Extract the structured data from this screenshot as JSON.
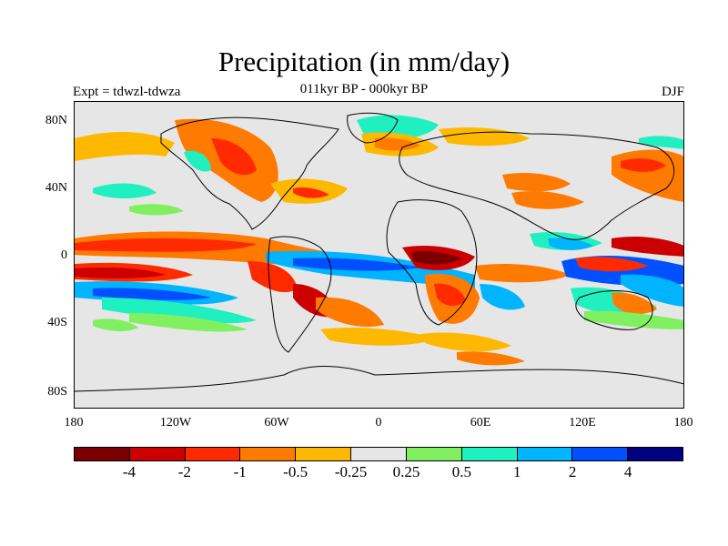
{
  "header": {
    "title": "Precipitation (in mm/day)",
    "subtitle": "011kyr BP - 000kyr BP",
    "left_label": "Expt = tdwzl-tdwza",
    "right_label": "DJF"
  },
  "axes": {
    "lat_ticks": [
      "80N",
      "40N",
      "0",
      "40S",
      "80S"
    ],
    "lon_ticks": [
      "180",
      "120W",
      "60W",
      "0",
      "60E",
      "120E",
      "180"
    ]
  },
  "legend": {
    "colors": [
      "#7a0000",
      "#cc0000",
      "#ff2a00",
      "#ff7a00",
      "#ffb800",
      "#e6e6e6",
      "#80f060",
      "#20f0c0",
      "#00b4ff",
      "#0050ff",
      "#000080"
    ],
    "labels": [
      "-4",
      "-2",
      "-1",
      "-0.5",
      "-0.25",
      "0.25",
      "0.5",
      "1",
      "2",
      "4"
    ]
  },
  "map": {
    "background_color": "#e6e6e6",
    "coastline_color": "#000000"
  }
}
